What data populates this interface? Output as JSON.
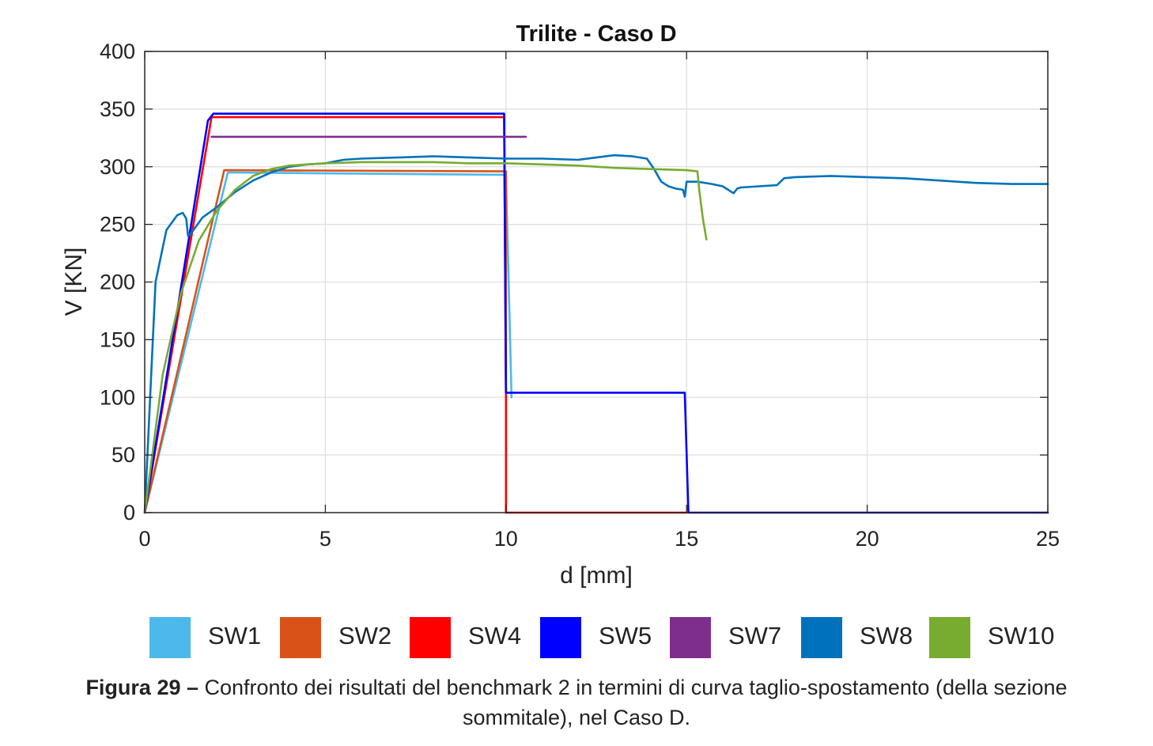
{
  "chart_data": {
    "type": "line",
    "title": "Trilite - Caso D",
    "xlabel": "d [mm]",
    "ylabel": "V [KN]",
    "xlim": [
      0,
      25
    ],
    "ylim": [
      0,
      400
    ],
    "xticks": [
      "0",
      "5",
      "10",
      "15",
      "20",
      "25"
    ],
    "yticks": [
      "0",
      "50",
      "100",
      "150",
      "200",
      "250",
      "300",
      "350",
      "400"
    ],
    "grid": true,
    "legend_position": "bottom",
    "series": [
      {
        "name": "SW1",
        "color": "#4db8ec",
        "x": [
          0,
          2.3,
          9.95,
          10.0,
          10.15,
          10.15
        ],
        "y": [
          0,
          295,
          293,
          293,
          105,
          100
        ]
      },
      {
        "name": "SW2",
        "color": "#d95319",
        "x": [
          0,
          2.2,
          10.0,
          10.0,
          10.0
        ],
        "y": [
          0,
          297,
          296,
          100,
          0
        ]
      },
      {
        "name": "SW4",
        "color": "#ff0000",
        "x": [
          0,
          1.85,
          9.95,
          10.0,
          10.0,
          15.0
        ],
        "y": [
          0,
          343,
          343,
          100,
          0,
          0
        ]
      },
      {
        "name": "SW5",
        "color": "#0000ff",
        "x": [
          0,
          1.75,
          1.9,
          9.95,
          10.0,
          14.95,
          15.05,
          25
        ],
        "y": [
          0,
          340,
          346,
          346,
          104,
          104,
          0,
          0
        ]
      },
      {
        "name": "SW7",
        "color": "#7e2f8e",
        "x": [
          1.85,
          10.55
        ],
        "y": [
          326,
          326
        ]
      },
      {
        "name": "SW8",
        "color": "#0072bd",
        "x": [
          0,
          0.3,
          0.6,
          0.9,
          1.05,
          1.15,
          1.2,
          1.3,
          1.6,
          2.0,
          2.5,
          3.0,
          3.5,
          4.0,
          4.5,
          5.0,
          5.5,
          6.0,
          7.0,
          8.0,
          9.0,
          10.0,
          11.0,
          12.0,
          12.5,
          13.0,
          13.5,
          13.9,
          14.1,
          14.3,
          14.5,
          14.7,
          14.9,
          14.95,
          15.0,
          15.3,
          15.7,
          16.0,
          16.3,
          16.4,
          16.5,
          17.0,
          17.5,
          17.7,
          18.0,
          19.0,
          20.0,
          21.0,
          22.0,
          23.0,
          24.0,
          25.0
        ],
        "y": [
          0,
          200,
          245,
          258,
          260,
          255,
          240,
          243,
          256,
          265,
          278,
          288,
          295,
          300,
          302,
          303,
          306,
          307,
          308,
          309,
          308,
          307,
          307,
          306,
          308,
          310,
          309,
          307,
          298,
          287,
          283,
          281,
          280,
          274,
          287,
          287,
          285,
          283,
          277,
          281,
          282,
          283,
          284,
          290,
          291,
          292,
          291,
          290,
          288,
          286,
          285,
          285
        ]
      },
      {
        "name": "SW10",
        "color": "#77ac30",
        "x": [
          0,
          0.5,
          1.0,
          1.5,
          2.0,
          2.5,
          3.0,
          3.5,
          4.0,
          5.0,
          6.0,
          7.0,
          8.0,
          9.0,
          10.0,
          11.0,
          12.0,
          13.0,
          14.0,
          15.0,
          15.3,
          15.35,
          15.45,
          15.55
        ],
        "y": [
          0,
          120,
          190,
          236,
          262,
          280,
          292,
          298,
          301,
          303,
          304,
          304,
          304,
          303,
          303,
          302,
          301,
          299,
          298,
          297,
          296,
          280,
          255,
          237
        ]
      }
    ]
  },
  "caption": {
    "label": "Figura 29 –",
    "text": " Confronto dei risultati del benchmark 2 in termini di curva taglio-spostamento (della sezione",
    "line2": "sommitale), nel Caso D."
  }
}
